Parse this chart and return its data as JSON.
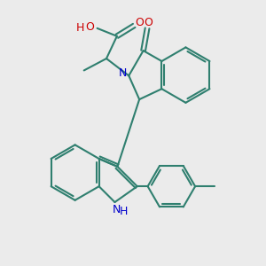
{
  "bg_color": "#EBEBEB",
  "bond_color": "#2F7F6F",
  "n_color": "#0000CC",
  "o_color": "#CC0000",
  "lw": 1.5,
  "figsize": [
    3.0,
    3.0
  ],
  "dpi": 100,
  "xlim": [
    0,
    10
  ],
  "ylim": [
    0,
    10
  ],
  "font_size": 9.0
}
